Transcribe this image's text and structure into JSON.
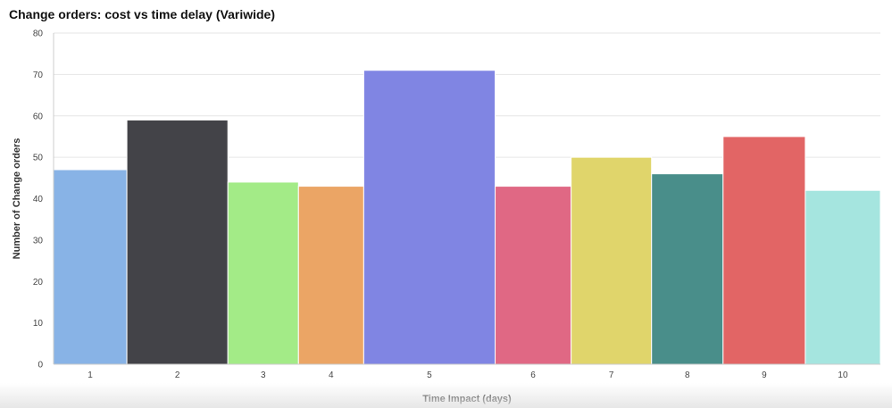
{
  "chart_data": {
    "type": "bar",
    "variant": "variwide",
    "title": "Change orders: cost vs time delay (Variwide)",
    "xlabel": "Time Impact (days)",
    "ylabel": "Number of Change orders",
    "ylim": [
      0,
      80
    ],
    "yticks": [
      0,
      10,
      20,
      30,
      40,
      50,
      60,
      70,
      80
    ],
    "grid": true,
    "legend": "none",
    "categories": [
      "1",
      "2",
      "3",
      "4",
      "5",
      "6",
      "7",
      "8",
      "9",
      "10"
    ],
    "values": [
      47,
      59,
      44,
      43,
      71,
      43,
      50,
      46,
      55,
      42
    ],
    "widths": [
      82,
      113,
      79,
      73,
      147,
      85,
      90,
      80,
      92,
      84
    ],
    "colors": [
      "#88b3e6",
      "#434348",
      "#a3eb87",
      "#eba565",
      "#8085e3",
      "#e06884",
      "#e0d56b",
      "#498e8a",
      "#e26565",
      "#a5e5df"
    ]
  }
}
